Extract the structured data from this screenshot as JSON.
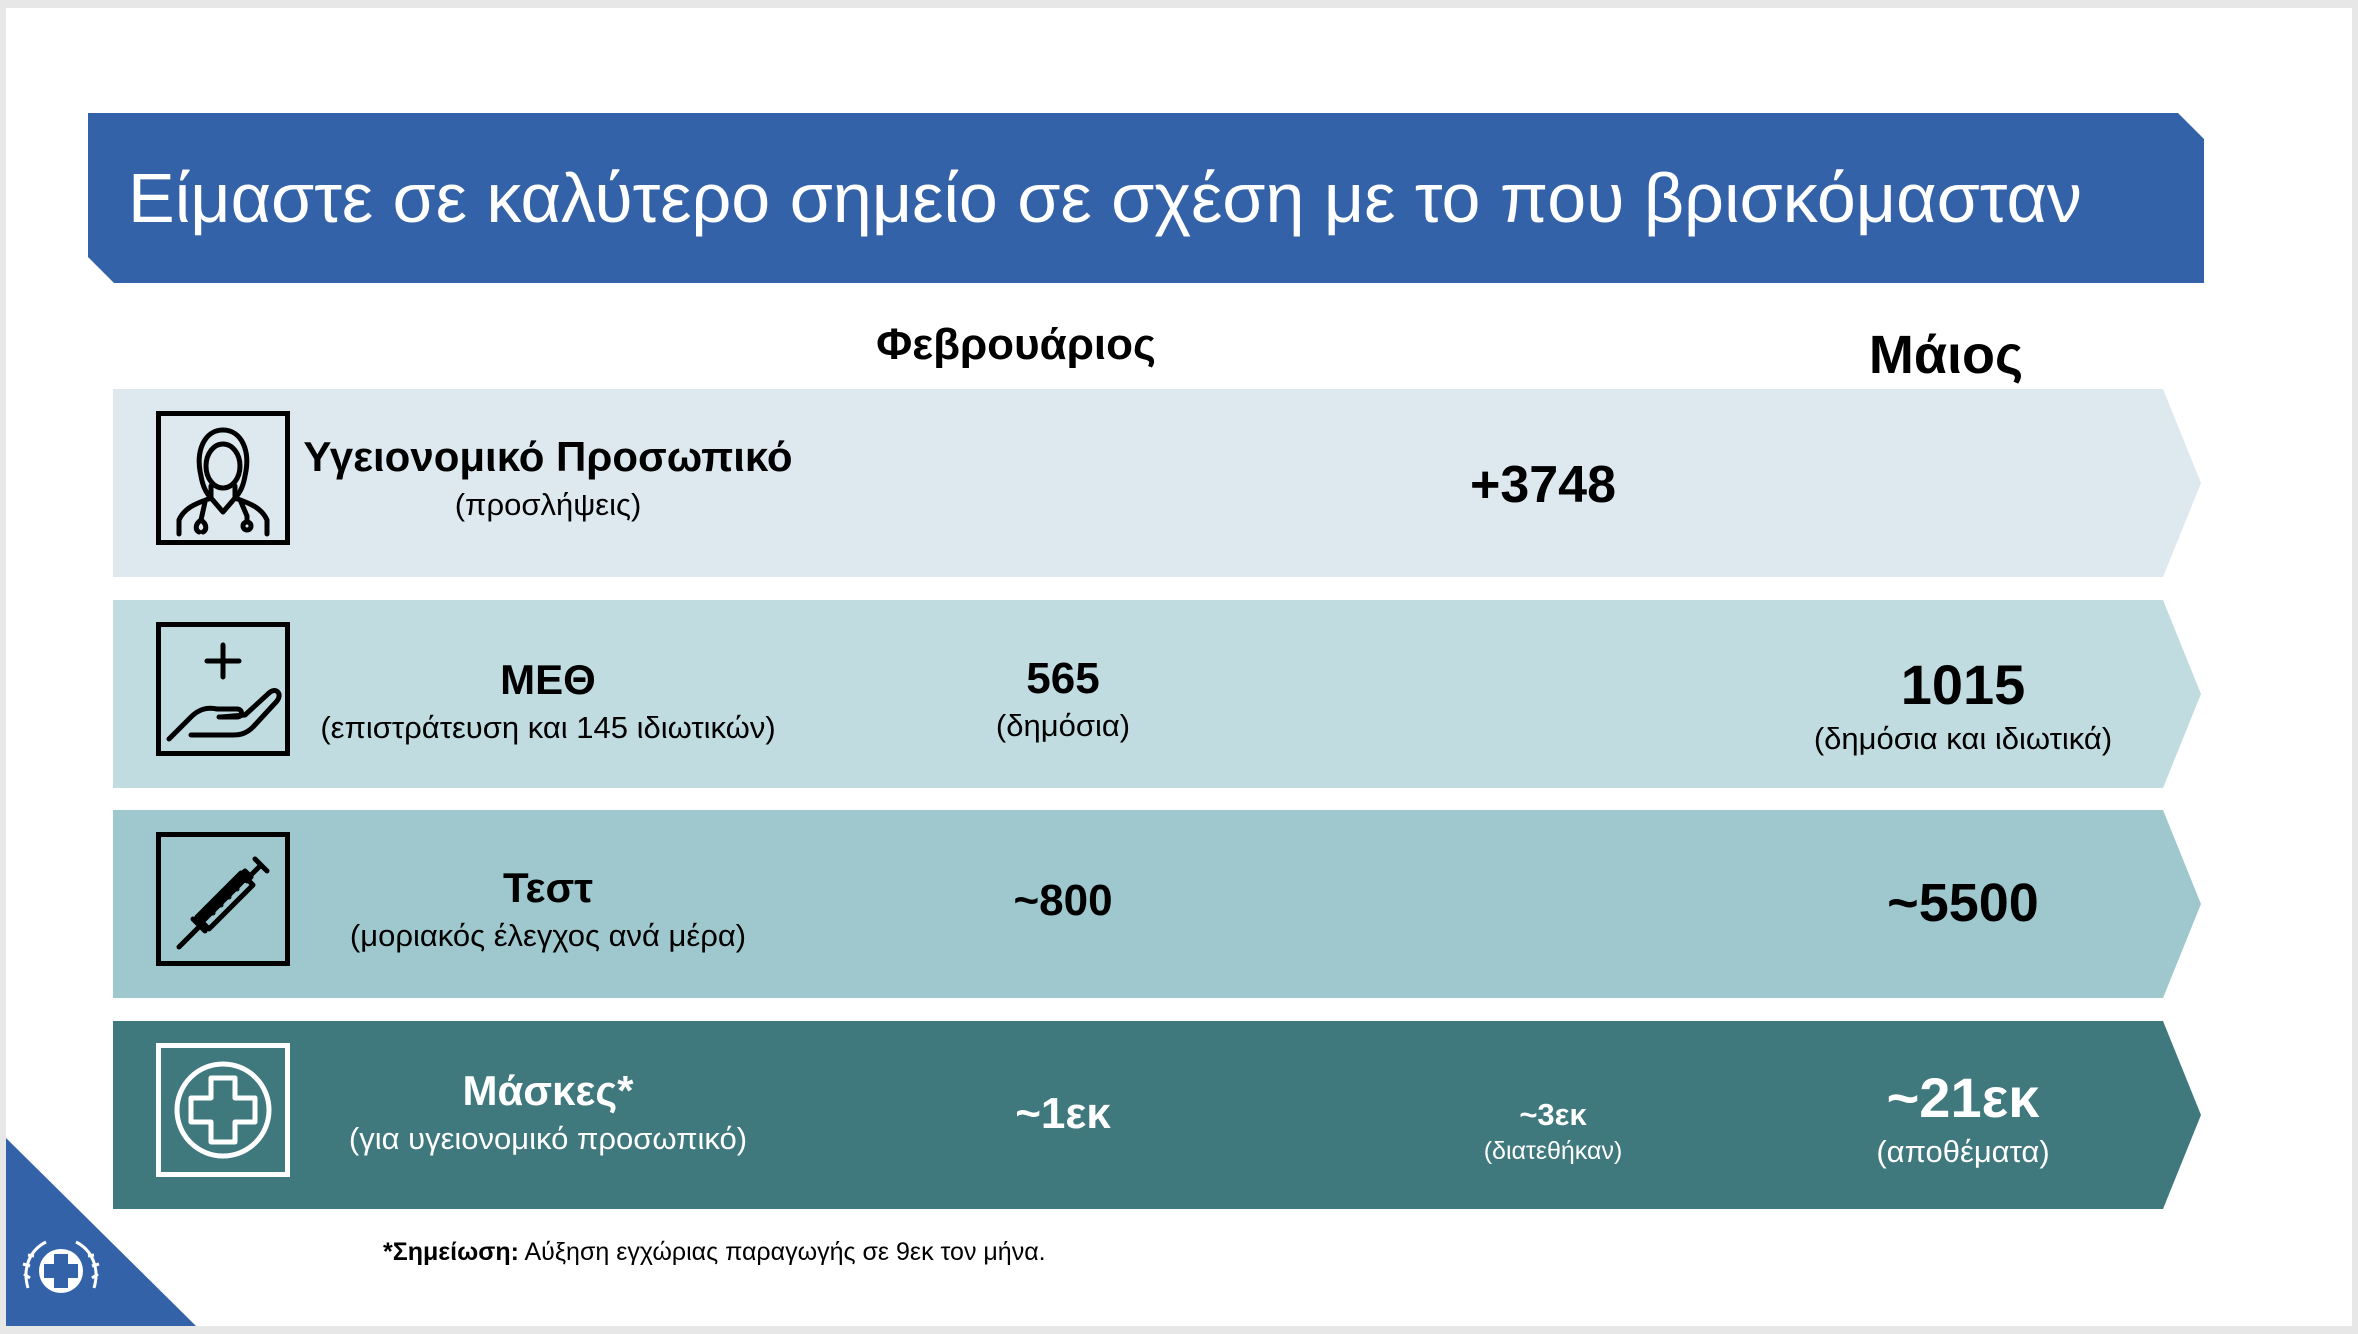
{
  "title": "Είμαστε σε καλύτερο σημείο σε σχέση με το που βρισκόμασταν",
  "columns": {
    "feb": "Φεβρουάριος",
    "may": "Μάιος"
  },
  "rows": [
    {
      "icon": "doctor-icon",
      "label": "Υγειονομικό Προσωπικό",
      "sublabel": "(προσλήψεις)",
      "feb_main": "",
      "feb_sub": "",
      "mid_main": "+3748",
      "mid_sub": "",
      "may_main": "",
      "may_sub": "",
      "color": "#dde9ee"
    },
    {
      "icon": "hand-plus-icon",
      "label": "ΜΕΘ",
      "sublabel": "(επιστράτευση και 145 ιδιωτικών)",
      "feb_main": "565",
      "feb_sub": "(δημόσια)",
      "mid_main": "",
      "mid_sub": "",
      "may_main": "1015",
      "may_sub": "(δημόσια και ιδιωτικά)",
      "color": "#c0dce0"
    },
    {
      "icon": "syringe-icon",
      "label": "Τεστ",
      "sublabel": "(μοριακός έλεγχος ανά μέρα)",
      "feb_main": "~800",
      "feb_sub": "",
      "mid_main": "",
      "mid_sub": "",
      "may_main": "~5500",
      "may_sub": "",
      "color": "#9ec8cd"
    },
    {
      "icon": "medical-cross-icon",
      "label": "Μάσκες*",
      "sublabel": "(για υγειονομικό προσωπικό)",
      "feb_main": "~1εκ",
      "feb_sub": "",
      "mid_main": "~3εκ",
      "mid_sub": "(διατεθήκαν)",
      "may_main": "~21εκ",
      "may_sub": "(αποθέματα)",
      "color": "#3f787d"
    }
  ],
  "footnote": {
    "bold": "*Σημείωση:",
    "text": " Αύξηση εγχώριας παραγωγής σε 9εκ τον μήνα."
  },
  "colors": {
    "banner": "#3462a8",
    "corner": "#3462a8"
  },
  "corner_icon": "greek-emblem-icon"
}
